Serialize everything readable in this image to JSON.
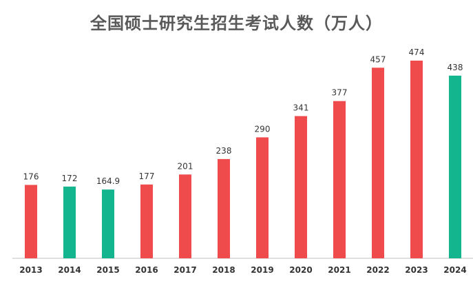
{
  "chart_data": {
    "type": "bar",
    "title": "全国硕士研究生招生考试人数（万人）",
    "categories": [
      "2013",
      "2014",
      "2015",
      "2016",
      "2017",
      "2018",
      "2019",
      "2020",
      "2021",
      "2022",
      "2023",
      "2024"
    ],
    "values": [
      176,
      172,
      164.9,
      177,
      201,
      238,
      290,
      341,
      377,
      457,
      474,
      438
    ],
    "value_labels": [
      "176",
      "172",
      "164.9",
      "177",
      "201",
      "238",
      "290",
      "341",
      "377",
      "457",
      "474",
      "438"
    ],
    "bar_colors": [
      "#f04b4c",
      "#12b58e",
      "#12b58e",
      "#f04b4c",
      "#f04b4c",
      "#f04b4c",
      "#f04b4c",
      "#f04b4c",
      "#f04b4c",
      "#f04b4c",
      "#f04b4c",
      "#12b58e"
    ],
    "xlabel": "",
    "ylabel": "",
    "ylim": [
      0,
      500
    ],
    "grid": false,
    "legend": "none"
  },
  "colors": {
    "increase": "#f04b4c",
    "decrease": "#12b58e",
    "axis": "#bfbfbf"
  }
}
